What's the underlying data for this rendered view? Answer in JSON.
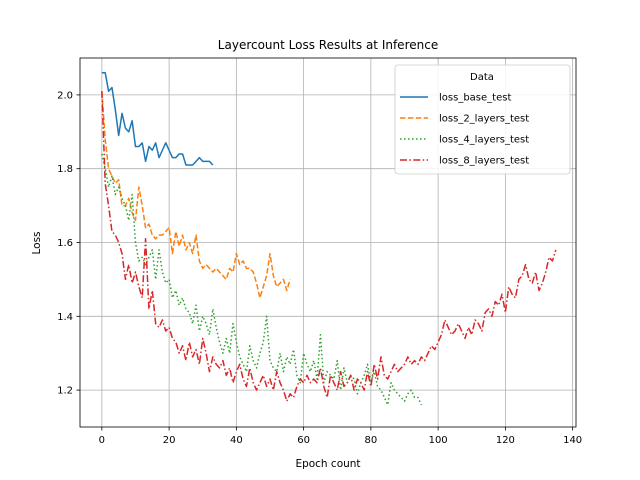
{
  "chart_data": {
    "type": "line",
    "title": "Layercount Loss Results at Inference",
    "xlabel": "Epoch count",
    "ylabel": "Loss",
    "xlim": [
      -6.5,
      141
    ],
    "ylim": [
      1.1,
      2.1
    ],
    "xticks": [
      0,
      20,
      40,
      60,
      80,
      100,
      120,
      140
    ],
    "yticks": [
      1.2,
      1.4,
      1.6,
      1.8,
      2.0
    ],
    "xtick_labels": [
      "0",
      "20",
      "40",
      "60",
      "80",
      "100",
      "120",
      "140"
    ],
    "ytick_labels": [
      "1.2",
      "1.4",
      "1.6",
      "1.8",
      "2.0"
    ],
    "grid": true,
    "legend": {
      "title": "Data",
      "position": "top-right"
    },
    "series": [
      {
        "name": "loss_base_test",
        "color": "#1f77b4",
        "dash": "solid",
        "x": [
          0,
          1,
          2,
          3,
          4,
          5,
          6,
          7,
          8,
          9,
          10,
          11,
          12,
          13,
          14,
          15,
          16,
          17,
          18,
          19,
          20,
          21,
          22,
          23,
          24,
          25,
          26,
          27,
          28,
          29,
          30,
          31,
          32,
          33
        ],
        "y": [
          2.06,
          2.06,
          2.01,
          2.02,
          1.96,
          1.89,
          1.95,
          1.91,
          1.9,
          1.93,
          1.86,
          1.86,
          1.87,
          1.82,
          1.86,
          1.85,
          1.87,
          1.83,
          1.85,
          1.87,
          1.85,
          1.83,
          1.83,
          1.84,
          1.84,
          1.81,
          1.81,
          1.81,
          1.82,
          1.83,
          1.82,
          1.82,
          1.82,
          1.81
        ]
      },
      {
        "name": "loss_2_layers_test",
        "color": "#ff7f0e",
        "dash": "dashed",
        "x": [
          0,
          1,
          2,
          3,
          4,
          5,
          6,
          7,
          8,
          9,
          10,
          11,
          12,
          13,
          14,
          15,
          16,
          17,
          18,
          19,
          20,
          21,
          22,
          23,
          24,
          25,
          26,
          27,
          28,
          29,
          30,
          31,
          32,
          33,
          34,
          35,
          36,
          37,
          38,
          39,
          40,
          41,
          42,
          43,
          44,
          45,
          46,
          47,
          48,
          49,
          50,
          51,
          52,
          53,
          54,
          55,
          56
        ],
        "y": [
          2.01,
          1.88,
          1.8,
          1.78,
          1.76,
          1.77,
          1.7,
          1.7,
          1.72,
          1.68,
          1.66,
          1.75,
          1.7,
          1.64,
          1.65,
          1.62,
          1.61,
          1.62,
          1.62,
          1.63,
          1.64,
          1.57,
          1.63,
          1.59,
          1.62,
          1.58,
          1.6,
          1.57,
          1.62,
          1.55,
          1.53,
          1.54,
          1.53,
          1.52,
          1.53,
          1.52,
          1.51,
          1.5,
          1.53,
          1.52,
          1.57,
          1.54,
          1.55,
          1.53,
          1.53,
          1.52,
          1.49,
          1.45,
          1.48,
          1.51,
          1.57,
          1.51,
          1.48,
          1.49,
          1.5,
          1.47,
          1.5
        ]
      },
      {
        "name": "loss_4_layers_test",
        "color": "#2ca02c",
        "dash": "dotted",
        "x": [
          0,
          1,
          2,
          3,
          4,
          5,
          6,
          7,
          8,
          9,
          10,
          11,
          12,
          13,
          14,
          15,
          16,
          17,
          18,
          19,
          20,
          21,
          22,
          23,
          24,
          25,
          26,
          27,
          28,
          29,
          30,
          31,
          32,
          33,
          34,
          35,
          36,
          37,
          38,
          39,
          40,
          41,
          42,
          43,
          44,
          45,
          46,
          47,
          48,
          49,
          50,
          51,
          52,
          53,
          54,
          55,
          56,
          57,
          58,
          59,
          60,
          61,
          62,
          63,
          64,
          65,
          66,
          67,
          68,
          69,
          70,
          71,
          72,
          73,
          74,
          75,
          76,
          77,
          78,
          79,
          80,
          81,
          82,
          83,
          84,
          85,
          86,
          87,
          88,
          89,
          90,
          91,
          92,
          93,
          94,
          95
        ],
        "y": [
          1.84,
          1.8,
          1.75,
          1.78,
          1.73,
          1.75,
          1.72,
          1.7,
          1.66,
          1.73,
          1.6,
          1.55,
          1.56,
          1.54,
          1.56,
          1.58,
          1.5,
          1.58,
          1.52,
          1.49,
          1.5,
          1.45,
          1.47,
          1.43,
          1.45,
          1.42,
          1.41,
          1.38,
          1.43,
          1.36,
          1.4,
          1.38,
          1.35,
          1.42,
          1.37,
          1.33,
          1.3,
          1.34,
          1.3,
          1.38,
          1.33,
          1.29,
          1.27,
          1.25,
          1.32,
          1.28,
          1.26,
          1.3,
          1.33,
          1.4,
          1.28,
          1.26,
          1.25,
          1.3,
          1.25,
          1.29,
          1.27,
          1.31,
          1.24,
          1.22,
          1.3,
          1.27,
          1.25,
          1.28,
          1.23,
          1.35,
          1.22,
          1.25,
          1.24,
          1.23,
          1.28,
          1.2,
          1.26,
          1.22,
          1.24,
          1.23,
          1.19,
          1.22,
          1.24,
          1.27,
          1.22,
          1.25,
          1.21,
          1.2,
          1.18,
          1.16,
          1.22,
          1.2,
          1.19,
          1.18,
          1.17,
          1.19,
          1.2,
          1.18,
          1.18,
          1.16
        ]
      },
      {
        "name": "loss_8_layers_test",
        "color": "#d62728",
        "dash": "dashdot",
        "x": [
          0,
          1,
          2,
          3,
          4,
          5,
          6,
          7,
          8,
          9,
          10,
          11,
          12,
          13,
          14,
          15,
          16,
          17,
          18,
          19,
          20,
          21,
          22,
          23,
          24,
          25,
          26,
          27,
          28,
          29,
          30,
          31,
          32,
          33,
          34,
          35,
          36,
          37,
          38,
          39,
          40,
          41,
          42,
          43,
          44,
          45,
          46,
          47,
          48,
          49,
          50,
          51,
          52,
          53,
          54,
          55,
          56,
          57,
          58,
          59,
          60,
          61,
          62,
          63,
          64,
          65,
          66,
          67,
          68,
          69,
          70,
          71,
          72,
          73,
          74,
          75,
          76,
          77,
          78,
          79,
          80,
          81,
          82,
          83,
          84,
          85,
          86,
          87,
          88,
          89,
          90,
          91,
          92,
          93,
          94,
          95,
          96,
          97,
          98,
          99,
          100,
          101,
          102,
          103,
          104,
          105,
          106,
          107,
          108,
          109,
          110,
          111,
          112,
          113,
          114,
          115,
          116,
          117,
          118,
          119,
          120,
          121,
          122,
          123,
          124,
          125,
          126,
          127,
          128,
          129,
          130,
          131,
          132,
          133,
          134,
          135
        ],
        "y": [
          2.01,
          1.76,
          1.7,
          1.63,
          1.62,
          1.6,
          1.57,
          1.5,
          1.54,
          1.49,
          1.52,
          1.48,
          1.45,
          1.61,
          1.42,
          1.47,
          1.38,
          1.37,
          1.39,
          1.36,
          1.37,
          1.34,
          1.33,
          1.3,
          1.32,
          1.28,
          1.33,
          1.29,
          1.31,
          1.27,
          1.34,
          1.3,
          1.25,
          1.29,
          1.27,
          1.26,
          1.28,
          1.24,
          1.26,
          1.22,
          1.25,
          1.27,
          1.23,
          1.21,
          1.26,
          1.22,
          1.2,
          1.22,
          1.24,
          1.21,
          1.23,
          1.2,
          1.25,
          1.22,
          1.2,
          1.17,
          1.19,
          1.18,
          1.21,
          1.23,
          1.22,
          1.24,
          1.22,
          1.23,
          1.22,
          1.26,
          1.21,
          1.18,
          1.24,
          1.22,
          1.2,
          1.25,
          1.21,
          1.22,
          1.24,
          1.2,
          1.23,
          1.22,
          1.2,
          1.25,
          1.21,
          1.27,
          1.23,
          1.29,
          1.24,
          1.23,
          1.25,
          1.27,
          1.25,
          1.26,
          1.27,
          1.29,
          1.27,
          1.28,
          1.27,
          1.29,
          1.28,
          1.3,
          1.32,
          1.31,
          1.33,
          1.35,
          1.39,
          1.37,
          1.35,
          1.36,
          1.38,
          1.36,
          1.34,
          1.37,
          1.35,
          1.39,
          1.38,
          1.36,
          1.41,
          1.42,
          1.4,
          1.44,
          1.43,
          1.46,
          1.41,
          1.48,
          1.46,
          1.45,
          1.5,
          1.51,
          1.54,
          1.5,
          1.49,
          1.52,
          1.47,
          1.49,
          1.52,
          1.56,
          1.55,
          1.58
        ]
      }
    ]
  }
}
